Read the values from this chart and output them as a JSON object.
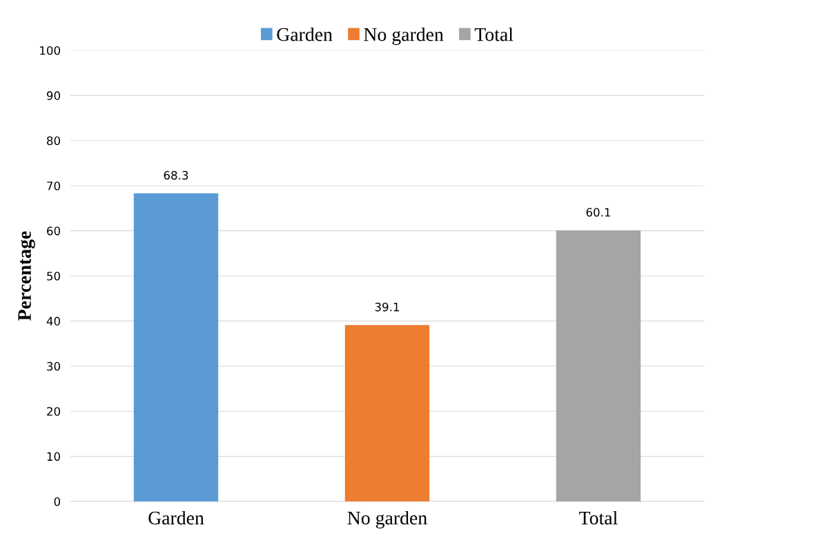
{
  "chart_data": {
    "type": "bar",
    "ylabel": "Percentage",
    "categories": [
      "Garden",
      "No garden",
      "Total"
    ],
    "series": [
      {
        "name": "Garden",
        "color": "#5b9bd5",
        "values": [
          68.3,
          null,
          null
        ]
      },
      {
        "name": "No garden",
        "color": "#ed7d31",
        "values": [
          null,
          39.1,
          null
        ]
      },
      {
        "name": "Total",
        "color": "#a5a5a5",
        "values": [
          null,
          null,
          60.1
        ]
      }
    ],
    "ylim": [
      0,
      100
    ],
    "yticks": [
      0,
      10,
      20,
      30,
      40,
      50,
      60,
      70,
      80,
      90,
      100
    ],
    "grid": "y",
    "legend": "top",
    "data_labels": true
  }
}
